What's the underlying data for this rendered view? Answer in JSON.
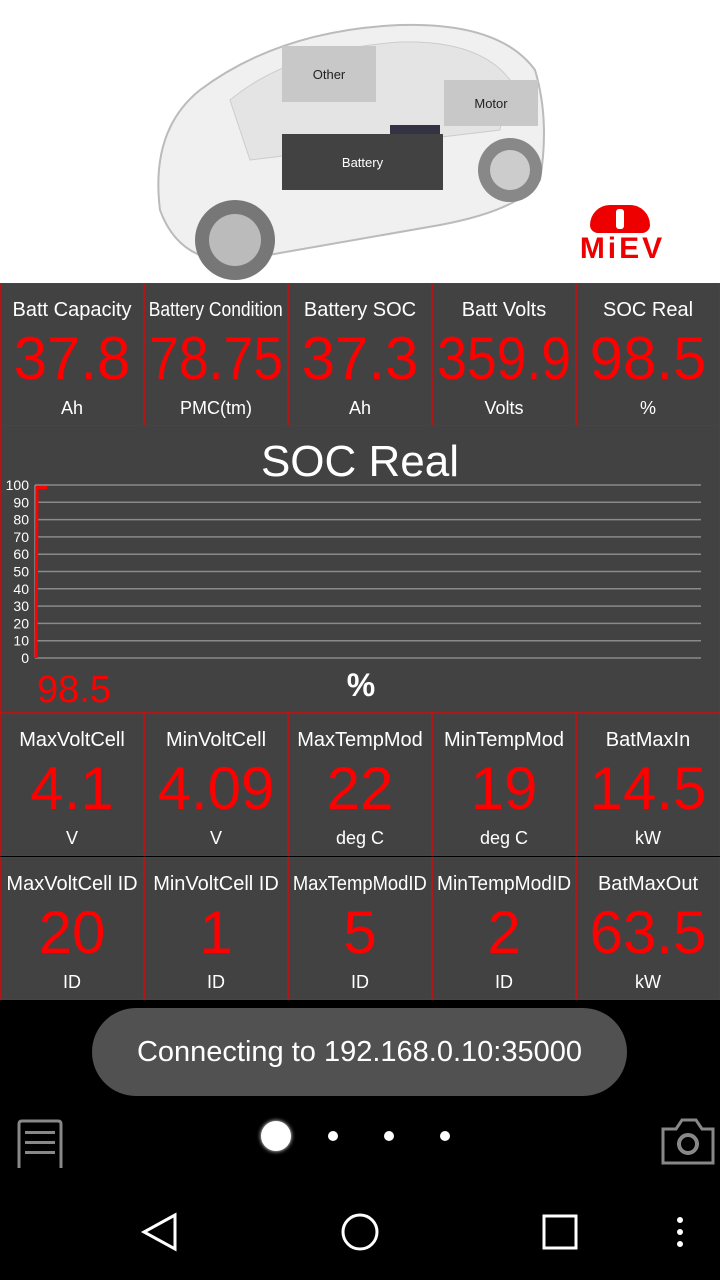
{
  "hero": {
    "buttons": {
      "other": "Other",
      "motor": "Motor",
      "battery": "Battery"
    },
    "logo": "MiEV"
  },
  "row1": [
    {
      "label": "Batt Capacity",
      "value": "37.8",
      "unit": "Ah"
    },
    {
      "label": "Battery Condition",
      "value": "78.75",
      "unit": "PMC(tm)"
    },
    {
      "label": "Battery SOC",
      "value": "37.3",
      "unit": "Ah"
    },
    {
      "label": "Batt Volts",
      "value": "359.9",
      "unit": "Volts"
    },
    {
      "label": "SOC Real",
      "value": "98.5",
      "unit": "%"
    }
  ],
  "chart_data": {
    "type": "bar",
    "title": "SOC Real",
    "yticks": [
      "100",
      "90",
      "80",
      "70",
      "60",
      "50",
      "40",
      "30",
      "20",
      "10",
      "0"
    ],
    "ylim": [
      0,
      100
    ],
    "values": [
      98.5
    ],
    "value_label": "98.5",
    "unit": "%",
    "grid": true,
    "color": "#ff0000"
  },
  "row2": [
    {
      "label": "MaxVoltCell",
      "value": "4.1",
      "unit": "V"
    },
    {
      "label": "MinVoltCell",
      "value": "4.09",
      "unit": "V"
    },
    {
      "label": "MaxTempMod",
      "value": "22",
      "unit": "deg C"
    },
    {
      "label": "MinTempMod",
      "value": "19",
      "unit": "deg C"
    },
    {
      "label": "BatMaxIn",
      "value": "14.5",
      "unit": "kW"
    }
  ],
  "row3": [
    {
      "label": "MaxVoltCell ID",
      "value": "20",
      "unit": "ID"
    },
    {
      "label": "MinVoltCell ID",
      "value": "1",
      "unit": "ID"
    },
    {
      "label": "MaxTempModID",
      "value": "5",
      "unit": "ID"
    },
    {
      "label": "MinTempModID",
      "value": "2",
      "unit": "ID"
    },
    {
      "label": "BatMaxOut",
      "value": "63.5",
      "unit": "kW"
    }
  ],
  "toast": "Connecting to 192.168.0.10:35000",
  "pager": {
    "pages": 4,
    "current": 1
  },
  "icons": {
    "menu": "menu-icon",
    "camera": "camera-icon",
    "back": "back-icon",
    "home": "home-icon",
    "recents": "recents-icon",
    "more": "more-icon"
  },
  "accent": "#ff0000"
}
